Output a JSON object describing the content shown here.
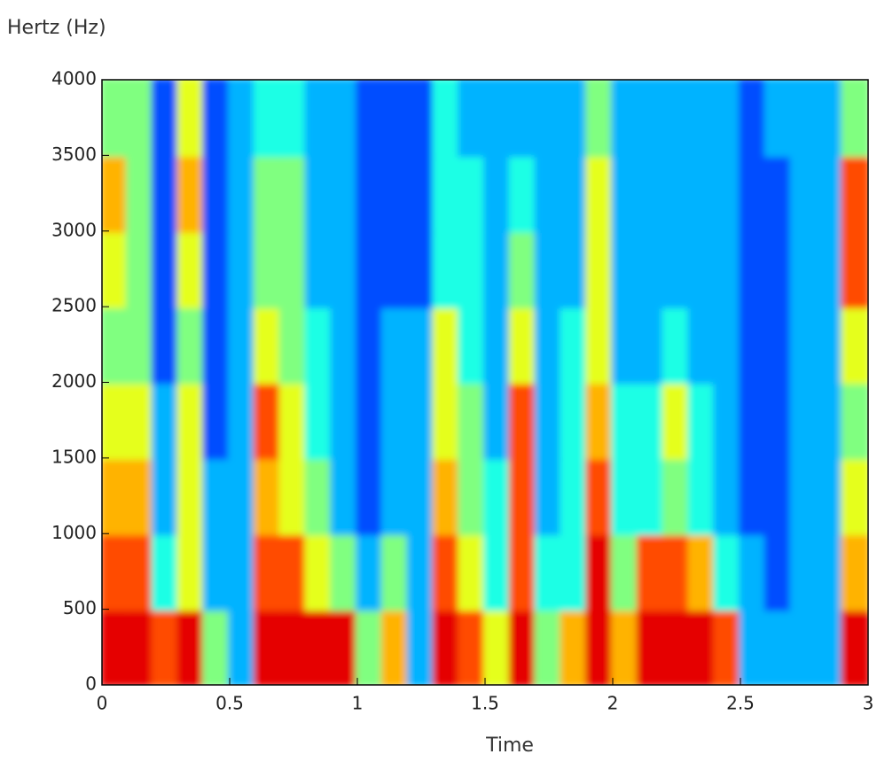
{
  "chart_data": {
    "type": "spectrogram",
    "y_label": "Hertz (Hz)",
    "x_label": "Time",
    "xlim": [
      0,
      3
    ],
    "xticks": [
      0,
      0.5,
      1,
      1.5,
      2,
      2.5,
      3
    ],
    "ylim": [
      0,
      4000
    ],
    "yticks": [
      0,
      500,
      1000,
      1500,
      2000,
      2500,
      3000,
      3500,
      4000
    ],
    "clim": [
      0,
      10
    ],
    "colormap": "jet",
    "time_bins": [
      0,
      0.1,
      0.2,
      0.3,
      0.4,
      0.5,
      0.6,
      0.7,
      0.8,
      0.9,
      1,
      1.1,
      1.2,
      1.3,
      1.4,
      1.5,
      1.6,
      1.7,
      1.8,
      1.9,
      2,
      2.1,
      2.2,
      2.3,
      2.4,
      2.5,
      2.6,
      2.7,
      2.8,
      2.9,
      3
    ],
    "frequency_bins": [
      0,
      500,
      1000,
      1500,
      2000,
      2500,
      3000,
      3500,
      4000
    ],
    "values": [
      [
        9,
        9,
        8,
        9,
        5,
        3,
        9,
        9,
        9,
        9,
        5,
        7,
        3,
        9,
        8,
        6,
        9,
        5,
        7,
        9,
        7,
        9,
        9,
        9,
        8,
        3,
        3,
        3,
        3,
        9
      ],
      [
        8,
        8,
        4,
        6,
        3,
        3,
        8,
        8,
        6,
        5,
        3,
        5,
        3,
        8,
        6,
        4,
        8,
        4,
        4,
        9,
        5,
        8,
        8,
        7,
        4,
        3,
        2,
        3,
        3,
        7
      ],
      [
        7,
        7,
        3,
        6,
        3,
        3,
        7,
        6,
        5,
        3,
        2,
        3,
        3,
        7,
        5,
        4,
        8,
        3,
        4,
        8,
        4,
        4,
        5,
        4,
        3,
        2,
        2,
        3,
        3,
        6
      ],
      [
        6,
        6,
        3,
        6,
        2,
        3,
        8,
        6,
        4,
        3,
        2,
        3,
        3,
        6,
        5,
        3,
        8,
        3,
        4,
        7,
        4,
        4,
        6,
        4,
        3,
        2,
        2,
        3,
        3,
        5
      ],
      [
        5,
        5,
        2,
        5,
        2,
        3,
        6,
        5,
        4,
        3,
        2,
        3,
        3,
        6,
        4,
        3,
        6,
        3,
        4,
        6,
        3,
        3,
        4,
        3,
        3,
        2,
        2,
        3,
        3,
        6
      ],
      [
        6,
        5,
        2,
        6,
        2,
        3,
        5,
        5,
        3,
        3,
        2,
        2,
        2,
        4,
        4,
        3,
        5,
        3,
        3,
        6,
        3,
        3,
        3,
        3,
        3,
        2,
        2,
        3,
        3,
        8
      ],
      [
        7,
        5,
        2,
        7,
        2,
        3,
        5,
        5,
        3,
        3,
        2,
        2,
        2,
        4,
        4,
        3,
        4,
        3,
        3,
        6,
        3,
        3,
        3,
        3,
        3,
        2,
        2,
        3,
        3,
        8
      ],
      [
        5,
        5,
        2,
        6,
        2,
        3,
        4,
        4,
        3,
        3,
        2,
        2,
        2,
        4,
        3,
        3,
        3,
        3,
        3,
        5,
        3,
        3,
        3,
        3,
        3,
        2,
        3,
        3,
        3,
        5
      ]
    ]
  }
}
